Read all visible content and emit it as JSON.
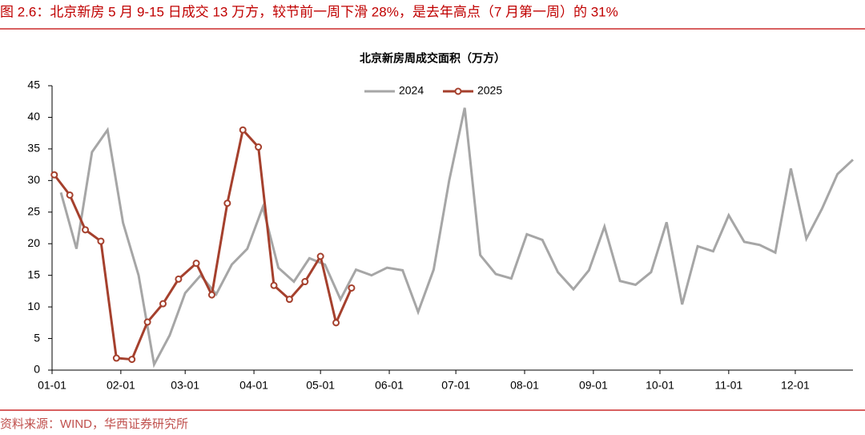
{
  "chart_data": {
    "type": "line",
    "caption": "图 2.6：北京新房 5 月 9-15 日成交 13 万方，较节前一周下滑 28%，是去年高点（7 月第一周）的 31%",
    "title": "北京新房周成交面积（万方）",
    "source": "资料来源：WIND，华西证券研究所",
    "xticks": [
      "01-01",
      "02-01",
      "03-01",
      "04-01",
      "05-01",
      "06-01",
      "07-01",
      "08-01",
      "09-01",
      "10-01",
      "11-01",
      "12-01"
    ],
    "xlim": [
      "01-01",
      "12-27"
    ],
    "ylim": [
      0,
      45
    ],
    "yticks": [
      0,
      5,
      10,
      15,
      20,
      25,
      30,
      35,
      40,
      45
    ],
    "legend": "upper center",
    "series": [
      {
        "name": "2024",
        "color": "#a6a6a6",
        "marker": false,
        "x": [
          "01-05",
          "01-12",
          "01-19",
          "01-26",
          "02-02",
          "02-09",
          "02-16",
          "02-23",
          "03-01",
          "03-08",
          "03-15",
          "03-22",
          "03-29",
          "04-05",
          "04-12",
          "04-19",
          "04-26",
          "05-03",
          "05-10",
          "05-17",
          "05-24",
          "05-31",
          "06-07",
          "06-14",
          "06-21",
          "06-28",
          "07-05",
          "07-12",
          "07-19",
          "07-26",
          "08-02",
          "08-09",
          "08-16",
          "08-23",
          "08-30",
          "09-06",
          "09-13",
          "09-20",
          "09-27",
          "10-04",
          "10-11",
          "10-18",
          "10-25",
          "11-01",
          "11-08",
          "11-15",
          "11-22",
          "11-29",
          "12-06",
          "12-13",
          "12-20",
          "12-27"
        ],
        "values": [
          28.1,
          19.2,
          34.5,
          38.0,
          23.3,
          15.0,
          0.9,
          5.5,
          12.2,
          15.0,
          12.0,
          16.7,
          19.2,
          25.8,
          16.2,
          14.0,
          17.7,
          16.7,
          11.2,
          15.9,
          15.0,
          16.2,
          15.8,
          9.2,
          15.9,
          30.0,
          41.5,
          18.2,
          15.2,
          14.5,
          21.5,
          20.6,
          15.5,
          12.8,
          15.8,
          22.7,
          14.1,
          13.5,
          15.5,
          23.4,
          10.4,
          19.6,
          18.8,
          24.5,
          20.3,
          19.8,
          18.6,
          31.9,
          20.8,
          25.5,
          31.0,
          33.3
        ]
      },
      {
        "name": "2025",
        "color": "#a5402d",
        "marker": true,
        "x": [
          "01-02",
          "01-09",
          "01-16",
          "01-23",
          "01-30",
          "02-06",
          "02-13",
          "02-20",
          "02-27",
          "03-06",
          "03-13",
          "03-20",
          "03-27",
          "04-03",
          "04-10",
          "04-17",
          "04-24",
          "05-01",
          "05-08",
          "05-15"
        ],
        "values": [
          30.9,
          27.7,
          22.2,
          20.4,
          1.9,
          1.7,
          7.6,
          10.5,
          14.4,
          16.9,
          11.9,
          26.4,
          38.0,
          35.3,
          13.4,
          11.2,
          14.0,
          18.0,
          7.5,
          13.0
        ]
      }
    ]
  }
}
